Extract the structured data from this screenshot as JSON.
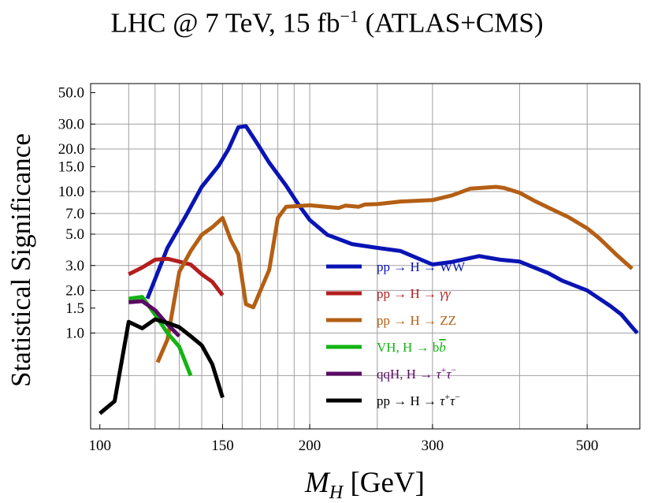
{
  "chart_data": {
    "type": "line",
    "title": {
      "main": "LHC @ 7 TeV,  15 fb",
      "exponent": "−1",
      "suffix": " (ATLAS+CMS)"
    },
    "xlabel": {
      "symbol": "M",
      "subscript": "H",
      "unit": " [GeV]"
    },
    "ylabel": "Statistical Significance",
    "x_scale": "log",
    "y_scale": "log",
    "xlim": [
      97,
      595
    ],
    "ylim": [
      0.21,
      58
    ],
    "x_ticks": [
      {
        "value": 100,
        "label": "100"
      },
      {
        "value": 150,
        "label": "150"
      },
      {
        "value": 200,
        "label": "200"
      },
      {
        "value": 300,
        "label": "300"
      },
      {
        "value": 500,
        "label": "500"
      }
    ],
    "x_grid": [
      110,
      120,
      130,
      140,
      150,
      160,
      170,
      180,
      190,
      200,
      250,
      300,
      400,
      500
    ],
    "y_ticks": [
      {
        "value": 1.0,
        "label": "1.0"
      },
      {
        "value": 1.5,
        "label": "1.5"
      },
      {
        "value": 2.0,
        "label": "2.0"
      },
      {
        "value": 3.0,
        "label": "3.0"
      },
      {
        "value": 5.0,
        "label": "5.0"
      },
      {
        "value": 7.0,
        "label": "7.0"
      },
      {
        "value": 10.0,
        "label": "10.0"
      },
      {
        "value": 15.0,
        "label": "15.0"
      },
      {
        "value": 20.0,
        "label": "20.0"
      },
      {
        "value": 30.0,
        "label": "30.0"
      },
      {
        "value": 50.0,
        "label": "50.0"
      }
    ],
    "y_grid": [
      0.5,
      1,
      2,
      3,
      5,
      7,
      10,
      20,
      30
    ],
    "series": [
      {
        "name": "pp → H → WW",
        "legend": {
          "text": "pp → H → WW"
        },
        "color": "#0a14b4",
        "points": [
          [
            117,
            1.75
          ],
          [
            125,
            4.0
          ],
          [
            133,
            6.8
          ],
          [
            140,
            10.8
          ],
          [
            148,
            15.2
          ],
          [
            153,
            20.0
          ],
          [
            158,
            28.5
          ],
          [
            162,
            29.0
          ],
          [
            168,
            22.0
          ],
          [
            175,
            16.0
          ],
          [
            185,
            11.0
          ],
          [
            193,
            8.0
          ],
          [
            200,
            6.3
          ],
          [
            212,
            4.95
          ],
          [
            230,
            4.25
          ],
          [
            250,
            4.0
          ],
          [
            270,
            3.8
          ],
          [
            300,
            3.05
          ],
          [
            320,
            3.18
          ],
          [
            350,
            3.5
          ],
          [
            375,
            3.3
          ],
          [
            400,
            3.2
          ],
          [
            440,
            2.65
          ],
          [
            460,
            2.35
          ],
          [
            500,
            2.0
          ],
          [
            540,
            1.55
          ],
          [
            560,
            1.35
          ],
          [
            580,
            1.1
          ],
          [
            590,
            1.0
          ]
        ]
      },
      {
        "name": "pp → H → γγ",
        "legend": {
          "text": "pp → H → ",
          "italic": "γγ"
        },
        "color": "#b41e1e",
        "points": [
          [
            110,
            2.6
          ],
          [
            115,
            2.9
          ],
          [
            120,
            3.3
          ],
          [
            125,
            3.35
          ],
          [
            130,
            3.2
          ],
          [
            135,
            3.05
          ],
          [
            140,
            2.6
          ],
          [
            145,
            2.3
          ],
          [
            150,
            1.85
          ]
        ]
      },
      {
        "name": "pp → H → ZZ",
        "legend": {
          "text": "pp → H → ZZ"
        },
        "color": "#b45f14",
        "points": [
          [
            121,
            0.62
          ],
          [
            125,
            0.9
          ],
          [
            130,
            2.7
          ],
          [
            135,
            3.8
          ],
          [
            140,
            4.95
          ],
          [
            145,
            5.6
          ],
          [
            150,
            6.5
          ],
          [
            154,
            4.6
          ],
          [
            158,
            3.6
          ],
          [
            162,
            1.6
          ],
          [
            166,
            1.52
          ],
          [
            170,
            2.0
          ],
          [
            175,
            2.8
          ],
          [
            180,
            6.5
          ],
          [
            185,
            7.8
          ],
          [
            200,
            8.0
          ],
          [
            220,
            7.65
          ],
          [
            225,
            7.95
          ],
          [
            235,
            7.8
          ],
          [
            240,
            8.1
          ],
          [
            250,
            8.15
          ],
          [
            270,
            8.5
          ],
          [
            300,
            8.7
          ],
          [
            320,
            9.4
          ],
          [
            340,
            10.5
          ],
          [
            370,
            10.8
          ],
          [
            380,
            10.6
          ],
          [
            400,
            9.8
          ],
          [
            420,
            8.6
          ],
          [
            450,
            7.3
          ],
          [
            470,
            6.6
          ],
          [
            500,
            5.5
          ],
          [
            520,
            4.7
          ],
          [
            550,
            3.6
          ],
          [
            580,
            2.85
          ]
        ]
      },
      {
        "name": "VH, H → bb̄",
        "legend": {
          "text": "VH, H → b",
          "overbar": "b"
        },
        "color": "#14b414",
        "points": [
          [
            110,
            1.75
          ],
          [
            115,
            1.8
          ],
          [
            120,
            1.35
          ],
          [
            125,
            1.0
          ],
          [
            130,
            0.8
          ],
          [
            135,
            0.5
          ]
        ]
      },
      {
        "name": "qqH, H → τ+τ−",
        "legend": {
          "text": "qqH, H → ",
          "italic": "τ",
          "sup1": "+",
          "italic2": "τ",
          "sup2": "−"
        },
        "color": "#5a0a64",
        "points": [
          [
            110,
            1.65
          ],
          [
            115,
            1.68
          ],
          [
            120,
            1.45
          ],
          [
            125,
            1.15
          ],
          [
            130,
            0.95
          ]
        ]
      },
      {
        "name": "pp → H → τ+τ−",
        "legend": {
          "text": "pp → H → ",
          "italic": "τ",
          "sup1": "+",
          "italic2": "τ",
          "sup2": "−"
        },
        "color": "#000000",
        "points": [
          [
            100,
            0.27
          ],
          [
            105,
            0.33
          ],
          [
            110,
            1.2
          ],
          [
            115,
            1.08
          ],
          [
            120,
            1.25
          ],
          [
            125,
            1.18
          ],
          [
            130,
            1.1
          ],
          [
            135,
            0.95
          ],
          [
            140,
            0.82
          ],
          [
            145,
            0.6
          ],
          [
            150,
            0.35
          ]
        ]
      }
    ]
  }
}
